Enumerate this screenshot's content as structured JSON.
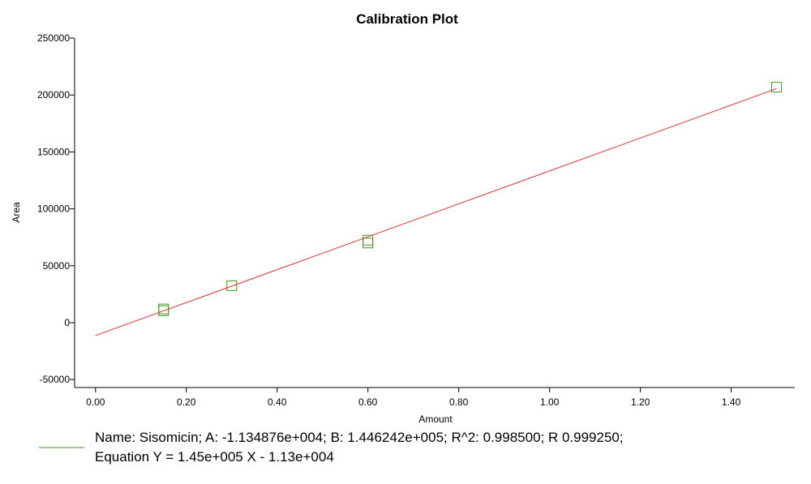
{
  "chart_data": {
    "type": "scatter",
    "title": "Calibration Plot",
    "x_label": "Amount",
    "y_label": "Area",
    "xlim": [
      -0.046,
      1.54
    ],
    "ylim": [
      -57000,
      250000
    ],
    "xticks": [
      {
        "value": 0,
        "label": "0.00"
      },
      {
        "value": 0.2,
        "label": "0.20"
      },
      {
        "value": 0.4,
        "label": "0.40"
      },
      {
        "value": 0.6,
        "label": "0.60"
      },
      {
        "value": 0.8,
        "label": "0.80"
      },
      {
        "value": 1,
        "label": "1.00"
      },
      {
        "value": 1.2,
        "label": "1.20"
      },
      {
        "value": 1.4,
        "label": "1.40"
      }
    ],
    "yticks": [
      -50000,
      0,
      50000,
      100000,
      150000,
      200000,
      250000
    ],
    "series": [
      {
        "color": "#3a9a1a",
        "marker": "square",
        "x": [
          0.15,
          0.15,
          0.3,
          0.6,
          0.6,
          1.5
        ],
        "values": [
          10500,
          12000,
          32500,
          70000,
          72500,
          207000
        ]
      },
      {
        "color": "#e03030",
        "marker": "line",
        "x": [
          0,
          1.5
        ],
        "values": [
          -11300,
          205600
        ]
      }
    ],
    "legend_color": "#3a9a1a",
    "legend_lines": [
      "Name: Sisomicin;   A: -1.134876e+004;   B: 1.446242e+005;   R^2: 0.998500; R 0.999250;",
      "Equation Y = 1.45e+005 X - 1.13e+004"
    ]
  }
}
